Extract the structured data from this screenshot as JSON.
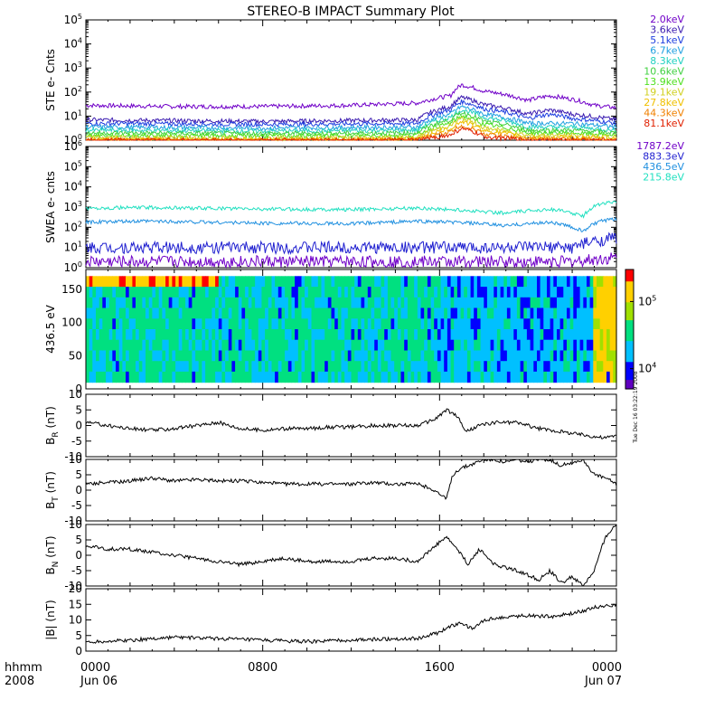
{
  "title": "STEREO-B IMPACT Summary Plot",
  "timestamp": "Tue Dec 16 03:22:19 2008",
  "time_axis": {
    "corner_top": "hhmm",
    "corner_bottom": "2008",
    "ticks": [
      {
        "label": "0000",
        "sub": "Jun 06",
        "hour": 0
      },
      {
        "label": "0800",
        "sub": "",
        "hour": 8
      },
      {
        "label": "1600",
        "sub": "",
        "hour": 16
      },
      {
        "label": "0000",
        "sub": "Jun 07",
        "hour": 24
      }
    ]
  },
  "colors": {
    "ste": [
      "#7000c8",
      "#3a1ab0",
      "#2040e0",
      "#20a0e0",
      "#20d0c0",
      "#40d040",
      "#50e020",
      "#d0d020",
      "#f0c000",
      "#f08000",
      "#e02000"
    ],
    "swea": [
      "#7000c8",
      "#2020d0",
      "#2090e0",
      "#20e0c0"
    ],
    "spectrogram": [
      "#6000c0",
      "#0000ff",
      "#00c0ff",
      "#00e080",
      "#a0e000",
      "#ffd000",
      "#ff0000"
    ]
  },
  "chart_data": [
    {
      "type": "line",
      "id": "ste",
      "ylabel": "STE e- Cnts",
      "yscale": "log",
      "ylim": [
        1,
        100000
      ],
      "yticks": [
        {
          "b": "10",
          "e": "0"
        },
        {
          "b": "10",
          "e": "1"
        },
        {
          "b": "10",
          "e": "2"
        },
        {
          "b": "10",
          "e": "3"
        },
        {
          "b": "10",
          "e": "4"
        },
        {
          "b": "10",
          "e": "5"
        }
      ],
      "legend": [
        "2.0keV",
        "3.6keV",
        "5.1keV",
        "6.7keV",
        "8.3keV",
        "10.6keV",
        "13.9keV",
        "19.1keV",
        "27.8keV",
        "44.3keV",
        "81.1keV"
      ],
      "series": [
        {
          "name": "2.0keV",
          "x": [
            0,
            4,
            8,
            12,
            15,
            16.5,
            17,
            18,
            20,
            21,
            22,
            23,
            24
          ],
          "y": [
            28,
            25,
            25,
            28,
            35,
            70,
            200,
            110,
            45,
            70,
            50,
            28,
            22
          ]
        },
        {
          "name": "3.6keV",
          "x": [
            0,
            8,
            15,
            16.5,
            17,
            18,
            20,
            21,
            22,
            24
          ],
          "y": [
            7,
            6,
            7,
            25,
            60,
            30,
            12,
            18,
            12,
            7
          ]
        },
        {
          "name": "5.1keV",
          "x": [
            0,
            8,
            15,
            16.5,
            17,
            18,
            20,
            21,
            22,
            24
          ],
          "y": [
            5,
            4.5,
            5,
            18,
            40,
            20,
            8,
            12,
            8,
            5
          ]
        },
        {
          "name": "6.7keV",
          "x": [
            0,
            8,
            15,
            16.5,
            17,
            18,
            20,
            22,
            24
          ],
          "y": [
            3.5,
            3.2,
            3.5,
            12,
            25,
            12,
            5,
            5,
            3.5
          ]
        },
        {
          "name": "8.3keV",
          "x": [
            0,
            8,
            15,
            16.5,
            17,
            18,
            20,
            22,
            24
          ],
          "y": [
            2.6,
            2.4,
            2.6,
            9,
            18,
            9,
            3.5,
            3.5,
            2.5
          ]
        },
        {
          "name": "10.6keV",
          "x": [
            0,
            8,
            15,
            16.5,
            17,
            18,
            20,
            22,
            24
          ],
          "y": [
            2.0,
            1.9,
            2.0,
            7,
            14,
            6,
            2.6,
            2.6,
            2.0
          ]
        },
        {
          "name": "13.9keV",
          "x": [
            0,
            8,
            15,
            16.5,
            17,
            18,
            20,
            22,
            24
          ],
          "y": [
            1.6,
            1.5,
            1.6,
            5,
            10,
            4.5,
            2.0,
            2.0,
            1.6
          ]
        },
        {
          "name": "19.1keV",
          "x": [
            0,
            8,
            15,
            16.5,
            17,
            18,
            20,
            22,
            24
          ],
          "y": [
            1.3,
            1.2,
            1.3,
            4,
            8,
            3.2,
            1.6,
            1.6,
            1.3
          ]
        },
        {
          "name": "27.8keV",
          "x": [
            0,
            8,
            15,
            16.5,
            17,
            18,
            20,
            22,
            24
          ],
          "y": [
            1.1,
            1.05,
            1.1,
            3,
            6,
            2.5,
            1.3,
            1.3,
            1.1
          ]
        },
        {
          "name": "44.3keV",
          "x": [
            0,
            8,
            15,
            16.5,
            17,
            18,
            20,
            22,
            24
          ],
          "y": [
            1.0,
            1.0,
            1.0,
            2.2,
            4,
            1.8,
            1.1,
            1.1,
            1.0
          ]
        },
        {
          "name": "81.1keV",
          "x": [
            0,
            8,
            15,
            16.5,
            17,
            18,
            20,
            22,
            24
          ],
          "y": [
            1.0,
            1.0,
            1.0,
            1.6,
            3,
            1.4,
            1.0,
            1.0,
            1.0
          ]
        }
      ]
    },
    {
      "type": "line",
      "id": "swea",
      "ylabel": "SWEA e- cnts",
      "yscale": "log",
      "ylim": [
        1,
        1000000
      ],
      "yticks": [
        {
          "b": "10",
          "e": "0"
        },
        {
          "b": "10",
          "e": "1"
        },
        {
          "b": "10",
          "e": "2"
        },
        {
          "b": "10",
          "e": "3"
        },
        {
          "b": "10",
          "e": "4"
        },
        {
          "b": "10",
          "e": "5"
        },
        {
          "b": "10",
          "e": "6"
        }
      ],
      "legend": [
        "1787.2eV",
        "883.3eV",
        "436.5eV",
        "215.8eV"
      ],
      "series": [
        {
          "name": "1787.2eV",
          "x": [
            0,
            8,
            16,
            20,
            22,
            24
          ],
          "y": [
            2,
            2,
            2,
            2,
            2,
            3
          ]
        },
        {
          "name": "883.3eV",
          "x": [
            0,
            8,
            16,
            20,
            22,
            23,
            24
          ],
          "y": [
            10,
            10,
            10,
            10,
            10,
            20,
            30
          ]
        },
        {
          "name": "436.5eV",
          "x": [
            0,
            3,
            8,
            12,
            15,
            17,
            19,
            21,
            22.5,
            23.3,
            24
          ],
          "y": [
            180,
            200,
            160,
            150,
            200,
            170,
            120,
            180,
            60,
            200,
            250
          ]
        },
        {
          "name": "215.8eV",
          "x": [
            0,
            3,
            8,
            12,
            15,
            17,
            19,
            21,
            22.5,
            23.3,
            24
          ],
          "y": [
            900,
            950,
            800,
            750,
            900,
            700,
            500,
            800,
            350,
            1500,
            1800
          ]
        }
      ]
    },
    {
      "type": "heatmap",
      "id": "spectrogram",
      "ylabel": "436.5 eV",
      "ylim": [
        0,
        180
      ],
      "yticks": [
        "0",
        "50",
        "100",
        "150"
      ],
      "colorbar": {
        "scale": "log",
        "range": [
          5000,
          300000
        ],
        "ticks": [
          {
            "b": "10",
            "e": "4",
            "v": 10000
          },
          {
            "b": "10",
            "e": "5",
            "v": 100000
          }
        ]
      }
    },
    {
      "type": "line",
      "id": "br",
      "ylabel_main": "B",
      "ylabel_sub": "R",
      "ylabel_unit": " (nT)",
      "ylim": [
        -10,
        10
      ],
      "yticks": [
        "-10",
        "-5",
        "0",
        "5",
        "10"
      ],
      "series": [
        {
          "name": "",
          "x": [
            0,
            1,
            2,
            3,
            4,
            5,
            6,
            7,
            8,
            9,
            10,
            11,
            12,
            13,
            14,
            15,
            15.8,
            16.3,
            16.8,
            17.2,
            17.8,
            18.5,
            19.5,
            20.5,
            21.5,
            22.5,
            23.5,
            24
          ],
          "y": [
            1,
            0,
            -1,
            -1.5,
            -1,
            0,
            1,
            -1,
            -1.5,
            -1,
            -1,
            -0.5,
            -0.5,
            0,
            0,
            0,
            2,
            5,
            3,
            -2,
            0,
            1,
            1,
            -1,
            -2,
            -3,
            -4,
            -3
          ]
        }
      ]
    },
    {
      "type": "line",
      "id": "bt",
      "ylabel_main": "B",
      "ylabel_sub": "T",
      "ylabel_unit": " (nT)",
      "ylim": [
        -10,
        10
      ],
      "yticks": [
        "-10",
        "-5",
        "0",
        "5",
        "10"
      ],
      "series": [
        {
          "name": "",
          "x": [
            0,
            1,
            2,
            3,
            4,
            5,
            6,
            7,
            8,
            9,
            10,
            11,
            12,
            13,
            14,
            15,
            15.8,
            16.3,
            16.6,
            16.9,
            17.3,
            18,
            18.5,
            19,
            19.5,
            20,
            20.5,
            21,
            21.5,
            22,
            22.5,
            23,
            23.5,
            24
          ],
          "y": [
            2,
            2.5,
            3,
            4,
            3,
            3.5,
            3,
            3,
            2.5,
            2,
            2,
            2,
            2,
            2.5,
            2,
            2,
            0,
            -3,
            5,
            7,
            8,
            10,
            10,
            9,
            10,
            9,
            10,
            10,
            8,
            9,
            10,
            5,
            4,
            2
          ]
        }
      ]
    },
    {
      "type": "line",
      "id": "bn",
      "ylabel_main": "B",
      "ylabel_sub": "N",
      "ylabel_unit": " (nT)",
      "ylim": [
        -10,
        10
      ],
      "yticks": [
        "-10",
        "-5",
        "0",
        "5",
        "10"
      ],
      "series": [
        {
          "name": "",
          "x": [
            0,
            1,
            2,
            3,
            4,
            5,
            6,
            7,
            8,
            9,
            10,
            11,
            12,
            13,
            14,
            15,
            15.8,
            16.3,
            16.8,
            17.3,
            17.8,
            18.5,
            19.5,
            20.5,
            21,
            21.5,
            22,
            22.5,
            23,
            23.5,
            24
          ],
          "y": [
            3,
            2,
            2,
            1,
            0,
            -1,
            -2,
            -3,
            -2,
            -1,
            -2,
            -2,
            -2,
            -1,
            -1,
            -2,
            3,
            6,
            2,
            -3,
            2,
            -3,
            -5,
            -8,
            -5,
            -9,
            -7,
            -10,
            -5,
            6,
            10
          ]
        }
      ]
    },
    {
      "type": "line",
      "id": "bmag",
      "ylabel": "|B| (nT)",
      "ylim": [
        0,
        20
      ],
      "yticks": [
        "0",
        "5",
        "10",
        "15",
        "20"
      ],
      "series": [
        {
          "name": "",
          "x": [
            0,
            2,
            4,
            6,
            8,
            10,
            12,
            14,
            15,
            16,
            16.5,
            17,
            17.5,
            18,
            19,
            20,
            21,
            22,
            23,
            24
          ],
          "y": [
            3,
            3.5,
            4.5,
            4,
            3.5,
            3,
            3.5,
            4,
            4,
            6,
            8,
            9,
            7,
            10,
            11,
            11.5,
            11,
            12,
            14,
            15
          ]
        }
      ]
    }
  ]
}
